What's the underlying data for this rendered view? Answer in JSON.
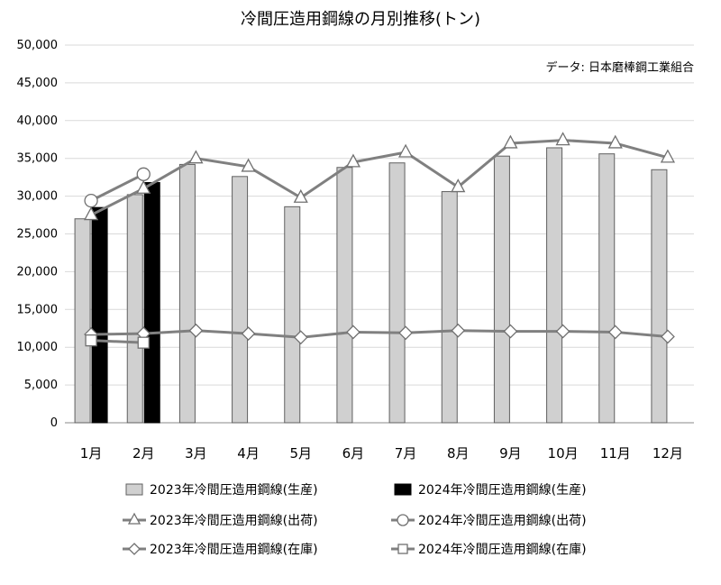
{
  "chart_data": {
    "type": "bar",
    "title": "冷間圧造用鋼線の月別推移(トン)",
    "source_note": "データ: 日本磨棒鋼工業組合",
    "categories": [
      "1月",
      "2月",
      "3月",
      "4月",
      "5月",
      "6月",
      "7月",
      "8月",
      "9月",
      "10月",
      "11月",
      "12月"
    ],
    "ylim": [
      0,
      50000
    ],
    "yticks": [
      "0",
      "5,000",
      "10,000",
      "15,000",
      "20,000",
      "25,000",
      "30,000",
      "35,000",
      "40,000",
      "45,000",
      "50,000"
    ],
    "ytick_values": [
      0,
      5000,
      10000,
      15000,
      20000,
      25000,
      30000,
      35000,
      40000,
      45000,
      50000
    ],
    "grid": true,
    "legend_position": "bottom",
    "series": [
      {
        "name": "2023年冷間圧造用鋼線(生産)",
        "kind": "bar",
        "color": "#d0d0d0",
        "values": [
          27000,
          30200,
          34200,
          32600,
          28600,
          33800,
          34400,
          30600,
          35300,
          36400,
          35600,
          33500
        ]
      },
      {
        "name": "2024年冷間圧造用鋼線(生産)",
        "kind": "bar",
        "color": "#000000",
        "values": [
          28500,
          31800,
          null,
          null,
          null,
          null,
          null,
          null,
          null,
          null,
          null,
          null
        ]
      },
      {
        "name": "2023年冷間圧造用鋼線(出荷)",
        "kind": "line",
        "marker": "triangle",
        "color": "#808080",
        "values": [
          27500,
          31000,
          35000,
          33900,
          29800,
          34500,
          35800,
          31200,
          37000,
          37400,
          37000,
          35100
        ]
      },
      {
        "name": "2024年冷間圧造用鋼線(出荷)",
        "kind": "line",
        "marker": "circle",
        "color": "#808080",
        "values": [
          29400,
          32900,
          null,
          null,
          null,
          null,
          null,
          null,
          null,
          null,
          null,
          null
        ]
      },
      {
        "name": "2023年冷間圧造用鋼線(在庫)",
        "kind": "line",
        "marker": "diamond",
        "color": "#808080",
        "values": [
          11700,
          11800,
          12200,
          11800,
          11300,
          12000,
          11900,
          12200,
          12100,
          12100,
          12000,
          11400
        ]
      },
      {
        "name": "2024年冷間圧造用鋼線(在庫)",
        "kind": "line",
        "marker": "square",
        "color": "#808080",
        "values": [
          10900,
          10600,
          null,
          null,
          null,
          null,
          null,
          null,
          null,
          null,
          null,
          null
        ]
      }
    ]
  }
}
